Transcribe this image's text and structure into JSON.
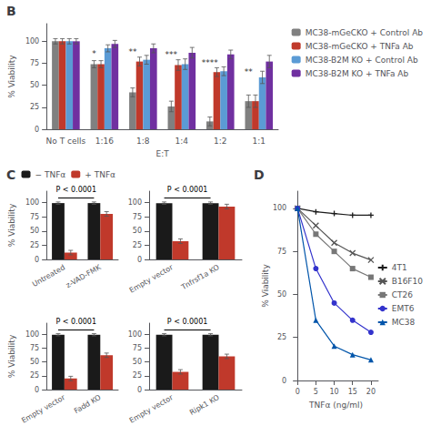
{
  "chart_data": [
    {
      "type": "bar",
      "title": "B",
      "categories": [
        "No T cells",
        "1:16",
        "1:8",
        "1:4",
        "1:2",
        "1:1"
      ],
      "series": [
        {
          "name": "MC38-mGeCKO + Control Ab",
          "color": "#808080",
          "values": [
            100,
            74,
            42,
            26,
            9,
            32
          ],
          "errors": [
            3,
            4,
            5,
            6,
            5,
            7
          ]
        },
        {
          "name": "MC38-mGeCKO + TNFa Ab",
          "color": "#c0392b",
          "values": [
            100,
            74,
            77,
            73,
            65,
            32
          ],
          "errors": [
            3,
            4,
            5,
            6,
            5,
            7
          ]
        },
        {
          "name": "MC38-B2M KO + Control Ab",
          "color": "#5b9bd5",
          "values": [
            100,
            92,
            79,
            74,
            66,
            59
          ],
          "errors": [
            3,
            4,
            5,
            6,
            5,
            7
          ]
        },
        {
          "name": "MC38-B2M KO + TNFa Ab",
          "color": "#7030a0",
          "values": [
            100,
            97,
            92,
            87,
            85,
            77
          ],
          "errors": [
            3,
            4,
            5,
            6,
            5,
            7
          ]
        }
      ],
      "xlabel": "E:T",
      "ylabel": "% Viability",
      "ylim": [
        0,
        120
      ],
      "yticks": [
        0,
        25,
        50,
        75,
        100
      ],
      "grid": false,
      "legend": "upper right",
      "annotations": [
        {
          "x": "1:16",
          "y": 80,
          "text": "*"
        },
        {
          "x": "1:8",
          "y": 82,
          "text": "**"
        },
        {
          "x": "1:4",
          "y": 79,
          "text": "***"
        },
        {
          "x": "1:2",
          "y": 70,
          "text": "****"
        },
        {
          "x": "1:1",
          "y": 60,
          "text": "**"
        }
      ]
    },
    {
      "type": "bar",
      "title": "C",
      "categories": [
        "Untreated",
        "z-VAD-FMK"
      ],
      "series": [
        {
          "name": "− TNFα",
          "color": "#1a1a1a",
          "values": [
            99,
            99
          ],
          "errors": [
            2,
            2
          ]
        },
        {
          "name": "+ TNFα",
          "color": "#c0392b",
          "values": [
            12,
            80
          ],
          "errors": [
            4,
            4
          ]
        }
      ],
      "ylabel": "% Viability",
      "ylim": [
        0,
        120
      ],
      "yticks": [
        0,
        25,
        50,
        75,
        100
      ],
      "grid": false,
      "legend": "upper right",
      "annotations": [
        {
          "y": 108,
          "text": "P < 0.0001"
        }
      ]
    },
    {
      "type": "bar",
      "categories": [
        "Empty vector",
        "Tnfrsf1a KO"
      ],
      "series": [
        {
          "color": "#1a1a1a",
          "values": [
            99,
            99
          ],
          "errors": [
            2,
            2
          ]
        },
        {
          "color": "#c0392b",
          "values": [
            32,
            93
          ],
          "errors": [
            4,
            4
          ]
        }
      ],
      "ylim": [
        0,
        120
      ],
      "yticks": [
        0,
        25,
        50,
        75,
        100
      ],
      "grid": false,
      "annotations": [
        {
          "y": 108,
          "text": "P < 0.0001"
        }
      ]
    },
    {
      "type": "bar",
      "categories": [
        "Empty vector",
        "Fadd KO"
      ],
      "series": [
        {
          "color": "#1a1a1a",
          "values": [
            99,
            99
          ],
          "errors": [
            2,
            2
          ]
        },
        {
          "color": "#c0392b",
          "values": [
            20,
            62
          ],
          "errors": [
            4,
            4
          ]
        }
      ],
      "ylabel": "% Viability",
      "ylim": [
        0,
        120
      ],
      "yticks": [
        0,
        25,
        50,
        75,
        100
      ],
      "grid": false,
      "annotations": [
        {
          "y": 108,
          "text": "P < 0.0001"
        }
      ]
    },
    {
      "type": "bar",
      "categories": [
        "Empty vector",
        "Ripk1 KO"
      ],
      "series": [
        {
          "color": "#1a1a1a",
          "values": [
            99,
            99
          ],
          "errors": [
            2,
            2
          ]
        },
        {
          "color": "#c0392b",
          "values": [
            32,
            60
          ],
          "errors": [
            4,
            4
          ]
        }
      ],
      "ylim": [
        0,
        120
      ],
      "yticks": [
        0,
        25,
        50,
        75,
        100
      ],
      "grid": false,
      "annotations": [
        {
          "y": 108,
          "text": "P < 0.0001"
        }
      ]
    },
    {
      "type": "line",
      "title": "D",
      "x": [
        0,
        5,
        10,
        15,
        20
      ],
      "series": [
        {
          "name": "4T1",
          "color": "#1a1a1a",
          "marker": "plus",
          "line_style": "solid",
          "values": [
            100,
            98,
            97,
            96,
            96
          ]
        },
        {
          "name": "B16F10",
          "color": "#555555",
          "marker": "x",
          "line_style": "solid",
          "values": [
            100,
            90,
            80,
            74,
            70
          ]
        },
        {
          "name": "CT26",
          "color": "#777777",
          "marker": "square",
          "line_style": "solid",
          "values": [
            100,
            85,
            75,
            65,
            60
          ]
        },
        {
          "name": "EMT6",
          "color": "#3333cc",
          "marker": "circle",
          "line_style": "solid",
          "values": [
            100,
            65,
            45,
            35,
            28
          ]
        },
        {
          "name": "MC38",
          "color": "#0055aa",
          "marker": "triangle",
          "line_style": "solid",
          "values": [
            100,
            35,
            20,
            15,
            12
          ]
        }
      ],
      "xlabel": "TNFα (ng/ml)",
      "ylabel": "% Viability",
      "xlim": [
        -1,
        22
      ],
      "xticks": [
        0,
        5,
        10,
        15,
        20
      ],
      "ylim": [
        0,
        110
      ],
      "yticks": [
        0,
        25,
        50,
        75,
        100
      ],
      "grid": false,
      "legend": "right"
    }
  ]
}
